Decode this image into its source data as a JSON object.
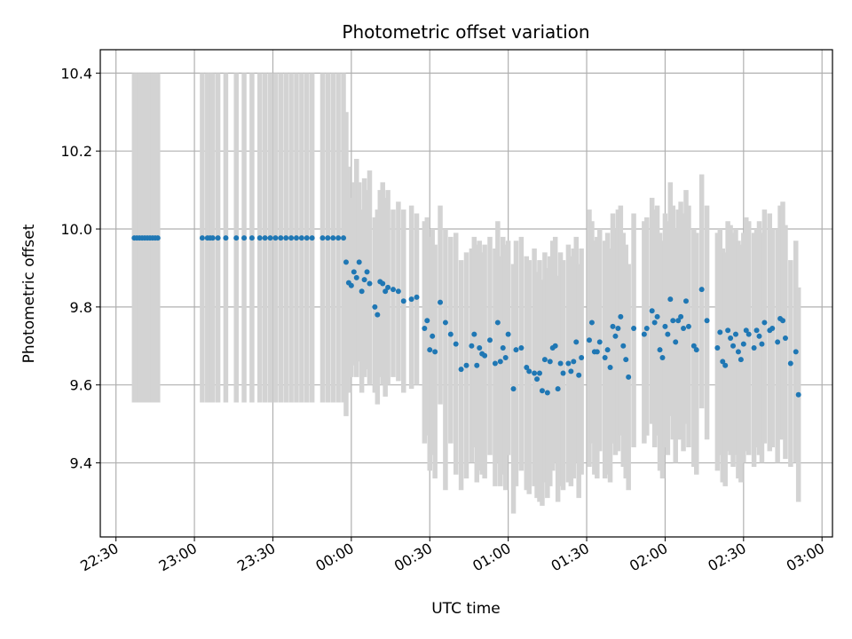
{
  "chart_data": {
    "type": "scatter",
    "title": "Photometric offset variation",
    "xlabel": "UTC time",
    "ylabel": "Photometric offset",
    "grid": true,
    "colors": {
      "points": "#1f77b4",
      "errorbars": "#d3d3d3",
      "grid": "#b0b0b0",
      "axes": "#000000"
    },
    "xlim": [
      "22:24",
      "03:04"
    ],
    "ylim": [
      9.21,
      10.46
    ],
    "x_ticks": [
      "22:30",
      "23:00",
      "23:30",
      "00:00",
      "00:30",
      "01:00",
      "01:30",
      "02:00",
      "02:30",
      "03:00"
    ],
    "y_ticks": [
      9.4,
      9.6,
      9.8,
      10.0,
      10.2,
      10.4
    ],
    "y_tick_labels": [
      "9.4",
      "9.6",
      "9.8",
      "10.0",
      "10.2",
      "10.4"
    ],
    "x_tick_rotation_deg": 30,
    "points": [
      {
        "x": "22:37",
        "y": 9.977,
        "lo": 9.555,
        "hi": 10.4
      },
      {
        "x": "22:38",
        "y": 9.977,
        "lo": 9.555,
        "hi": 10.4
      },
      {
        "x": "22:39",
        "y": 9.977,
        "lo": 9.555,
        "hi": 10.4
      },
      {
        "x": "22:40",
        "y": 9.977,
        "lo": 9.555,
        "hi": 10.4
      },
      {
        "x": "22:41",
        "y": 9.977,
        "lo": 9.555,
        "hi": 10.4
      },
      {
        "x": "22:42",
        "y": 9.977,
        "lo": 9.555,
        "hi": 10.4
      },
      {
        "x": "22:43",
        "y": 9.977,
        "lo": 9.555,
        "hi": 10.4
      },
      {
        "x": "22:44",
        "y": 9.977,
        "lo": 9.555,
        "hi": 10.4
      },
      {
        "x": "22:45",
        "y": 9.977,
        "lo": 9.555,
        "hi": 10.4
      },
      {
        "x": "22:46",
        "y": 9.977,
        "lo": 9.555,
        "hi": 10.4
      },
      {
        "x": "23:03",
        "y": 9.977,
        "lo": 9.555,
        "hi": 10.4
      },
      {
        "x": "23:05",
        "y": 9.977,
        "lo": 9.555,
        "hi": 10.4
      },
      {
        "x": "23:06",
        "y": 9.977,
        "lo": 9.555,
        "hi": 10.4
      },
      {
        "x": "23:07",
        "y": 9.977,
        "lo": 9.555,
        "hi": 10.4
      },
      {
        "x": "23:09",
        "y": 9.977,
        "lo": 9.555,
        "hi": 10.4
      },
      {
        "x": "23:12",
        "y": 9.977,
        "lo": 9.555,
        "hi": 10.4
      },
      {
        "x": "23:16",
        "y": 9.977,
        "lo": 9.555,
        "hi": 10.4
      },
      {
        "x": "23:19",
        "y": 9.977,
        "lo": 9.555,
        "hi": 10.4
      },
      {
        "x": "23:22",
        "y": 9.977,
        "lo": 9.555,
        "hi": 10.4
      },
      {
        "x": "23:25",
        "y": 9.977,
        "lo": 9.555,
        "hi": 10.4
      },
      {
        "x": "23:27",
        "y": 9.977,
        "lo": 9.555,
        "hi": 10.4
      },
      {
        "x": "23:29",
        "y": 9.977,
        "lo": 9.555,
        "hi": 10.4
      },
      {
        "x": "23:31",
        "y": 9.977,
        "lo": 9.555,
        "hi": 10.4
      },
      {
        "x": "23:33",
        "y": 9.977,
        "lo": 9.555,
        "hi": 10.4
      },
      {
        "x": "23:35",
        "y": 9.977,
        "lo": 9.555,
        "hi": 10.4
      },
      {
        "x": "23:37",
        "y": 9.977,
        "lo": 9.555,
        "hi": 10.4
      },
      {
        "x": "23:39",
        "y": 9.977,
        "lo": 9.555,
        "hi": 10.4
      },
      {
        "x": "23:41",
        "y": 9.977,
        "lo": 9.555,
        "hi": 10.4
      },
      {
        "x": "23:43",
        "y": 9.977,
        "lo": 9.555,
        "hi": 10.4
      },
      {
        "x": "23:45",
        "y": 9.977,
        "lo": 9.555,
        "hi": 10.4
      },
      {
        "x": "23:49",
        "y": 9.977,
        "lo": 9.555,
        "hi": 10.4
      },
      {
        "x": "23:51",
        "y": 9.977,
        "lo": 9.555,
        "hi": 10.4
      },
      {
        "x": "23:53",
        "y": 9.977,
        "lo": 9.555,
        "hi": 10.4
      },
      {
        "x": "23:55",
        "y": 9.977,
        "lo": 9.555,
        "hi": 10.4
      },
      {
        "x": "23:57",
        "y": 9.977,
        "lo": 9.555,
        "hi": 10.4
      },
      {
        "x": "23:58",
        "y": 9.915,
        "lo": 9.52,
        "hi": 10.3
      },
      {
        "x": "23:59",
        "y": 9.862,
        "lo": 9.58,
        "hi": 10.16
      },
      {
        "x": "00:00",
        "y": 9.855,
        "lo": 9.62,
        "hi": 10.08
      },
      {
        "x": "00:01",
        "y": 9.89,
        "lo": 9.65,
        "hi": 10.12
      },
      {
        "x": "00:02",
        "y": 9.875,
        "lo": 9.62,
        "hi": 10.18
      },
      {
        "x": "00:03",
        "y": 9.915,
        "lo": 9.66,
        "hi": 10.12
      },
      {
        "x": "00:04",
        "y": 9.84,
        "lo": 9.58,
        "hi": 10.05
      },
      {
        "x": "00:05",
        "y": 9.87,
        "lo": 9.62,
        "hi": 10.13
      },
      {
        "x": "00:06",
        "y": 9.89,
        "lo": 9.64,
        "hi": 10.1
      },
      {
        "x": "00:07",
        "y": 9.86,
        "lo": 9.6,
        "hi": 10.15
      },
      {
        "x": "00:09",
        "y": 9.8,
        "lo": 9.58,
        "hi": 10.03
      },
      {
        "x": "00:10",
        "y": 9.78,
        "lo": 9.55,
        "hi": 10.05
      },
      {
        "x": "00:11",
        "y": 9.865,
        "lo": 9.62,
        "hi": 10.1
      },
      {
        "x": "00:12",
        "y": 9.86,
        "lo": 9.6,
        "hi": 10.12
      },
      {
        "x": "00:13",
        "y": 9.84,
        "lo": 9.57,
        "hi": 10.08
      },
      {
        "x": "00:14",
        "y": 9.85,
        "lo": 9.6,
        "hi": 10.1
      },
      {
        "x": "00:16",
        "y": 9.845,
        "lo": 9.62,
        "hi": 10.05
      },
      {
        "x": "00:18",
        "y": 9.84,
        "lo": 9.61,
        "hi": 10.07
      },
      {
        "x": "00:20",
        "y": 9.815,
        "lo": 9.58,
        "hi": 10.05
      },
      {
        "x": "00:23",
        "y": 9.82,
        "lo": 9.59,
        "hi": 10.06
      },
      {
        "x": "00:25",
        "y": 9.825,
        "lo": 9.6,
        "hi": 10.04
      },
      {
        "x": "00:28",
        "y": 9.745,
        "lo": 9.45,
        "hi": 10.02
      },
      {
        "x": "00:29",
        "y": 9.765,
        "lo": 9.47,
        "hi": 10.03
      },
      {
        "x": "00:30",
        "y": 9.69,
        "lo": 9.38,
        "hi": 9.98
      },
      {
        "x": "00:31",
        "y": 9.725,
        "lo": 9.42,
        "hi": 10.0
      },
      {
        "x": "00:32",
        "y": 9.685,
        "lo": 9.36,
        "hi": 9.96
      },
      {
        "x": "00:34",
        "y": 9.812,
        "lo": 9.55,
        "hi": 10.06
      },
      {
        "x": "00:36",
        "y": 9.76,
        "lo": 9.33,
        "hi": 10.0
      },
      {
        "x": "00:38",
        "y": 9.73,
        "lo": 9.45,
        "hi": 9.98
      },
      {
        "x": "00:40",
        "y": 9.705,
        "lo": 9.37,
        "hi": 9.99
      },
      {
        "x": "00:42",
        "y": 9.64,
        "lo": 9.33,
        "hi": 9.92
      },
      {
        "x": "00:44",
        "y": 9.65,
        "lo": 9.36,
        "hi": 9.94
      },
      {
        "x": "00:46",
        "y": 9.7,
        "lo": 9.4,
        "hi": 9.95
      },
      {
        "x": "00:47",
        "y": 9.73,
        "lo": 9.44,
        "hi": 9.98
      },
      {
        "x": "00:48",
        "y": 9.65,
        "lo": 9.35,
        "hi": 9.96
      },
      {
        "x": "00:49",
        "y": 9.695,
        "lo": 9.38,
        "hi": 9.97
      },
      {
        "x": "00:50",
        "y": 9.68,
        "lo": 9.37,
        "hi": 9.94
      },
      {
        "x": "00:51",
        "y": 9.675,
        "lo": 9.36,
        "hi": 9.96
      },
      {
        "x": "00:53",
        "y": 9.715,
        "lo": 9.42,
        "hi": 9.98
      },
      {
        "x": "00:55",
        "y": 9.655,
        "lo": 9.34,
        "hi": 9.95
      },
      {
        "x": "00:56",
        "y": 9.76,
        "lo": 9.4,
        "hi": 10.02
      },
      {
        "x": "00:57",
        "y": 9.66,
        "lo": 9.34,
        "hi": 9.93
      },
      {
        "x": "00:58",
        "y": 9.695,
        "lo": 9.37,
        "hi": 9.98
      },
      {
        "x": "00:59",
        "y": 9.67,
        "lo": 9.33,
        "hi": 9.96
      },
      {
        "x": "01:00",
        "y": 9.73,
        "lo": 9.42,
        "hi": 9.97
      },
      {
        "x": "01:02",
        "y": 9.59,
        "lo": 9.27,
        "hi": 9.91
      },
      {
        "x": "01:03",
        "y": 9.69,
        "lo": 9.34,
        "hi": 9.97
      },
      {
        "x": "01:05",
        "y": 9.695,
        "lo": 9.38,
        "hi": 9.98
      },
      {
        "x": "01:07",
        "y": 9.645,
        "lo": 9.33,
        "hi": 9.93
      },
      {
        "x": "01:08",
        "y": 9.635,
        "lo": 9.32,
        "hi": 9.92
      },
      {
        "x": "01:10",
        "y": 9.63,
        "lo": 9.34,
        "hi": 9.95
      },
      {
        "x": "01:11",
        "y": 9.615,
        "lo": 9.31,
        "hi": 9.89
      },
      {
        "x": "01:12",
        "y": 9.63,
        "lo": 9.3,
        "hi": 9.92
      },
      {
        "x": "01:13",
        "y": 9.585,
        "lo": 9.29,
        "hi": 9.87
      },
      {
        "x": "01:14",
        "y": 9.665,
        "lo": 9.35,
        "hi": 9.94
      },
      {
        "x": "01:15",
        "y": 9.58,
        "lo": 9.31,
        "hi": 9.9
      },
      {
        "x": "01:16",
        "y": 9.66,
        "lo": 9.34,
        "hi": 9.93
      },
      {
        "x": "01:17",
        "y": 9.695,
        "lo": 9.38,
        "hi": 9.97
      },
      {
        "x": "01:18",
        "y": 9.7,
        "lo": 9.4,
        "hi": 9.98
      },
      {
        "x": "01:19",
        "y": 9.59,
        "lo": 9.3,
        "hi": 9.88
      },
      {
        "x": "01:20",
        "y": 9.655,
        "lo": 9.34,
        "hi": 9.94
      },
      {
        "x": "01:21",
        "y": 9.63,
        "lo": 9.33,
        "hi": 9.92
      },
      {
        "x": "01:23",
        "y": 9.655,
        "lo": 9.35,
        "hi": 9.96
      },
      {
        "x": "01:24",
        "y": 9.635,
        "lo": 9.34,
        "hi": 9.93
      },
      {
        "x": "01:25",
        "y": 9.66,
        "lo": 9.36,
        "hi": 9.95
      },
      {
        "x": "01:26",
        "y": 9.71,
        "lo": 9.4,
        "hi": 9.98
      },
      {
        "x": "01:27",
        "y": 9.625,
        "lo": 9.31,
        "hi": 9.91
      },
      {
        "x": "01:28",
        "y": 9.67,
        "lo": 9.37,
        "hi": 9.95
      },
      {
        "x": "01:31",
        "y": 9.715,
        "lo": 9.39,
        "hi": 10.05
      },
      {
        "x": "01:32",
        "y": 9.76,
        "lo": 9.45,
        "hi": 10.02
      },
      {
        "x": "01:33",
        "y": 9.685,
        "lo": 9.37,
        "hi": 9.97
      },
      {
        "x": "01:34",
        "y": 9.685,
        "lo": 9.36,
        "hi": 9.98
      },
      {
        "x": "01:35",
        "y": 9.71,
        "lo": 9.43,
        "hi": 10.0
      },
      {
        "x": "01:37",
        "y": 9.67,
        "lo": 9.36,
        "hi": 9.97
      },
      {
        "x": "01:38",
        "y": 9.69,
        "lo": 9.37,
        "hi": 9.99
      },
      {
        "x": "01:39",
        "y": 9.645,
        "lo": 9.35,
        "hi": 9.95
      },
      {
        "x": "01:40",
        "y": 9.75,
        "lo": 9.45,
        "hi": 10.04
      },
      {
        "x": "01:41",
        "y": 9.725,
        "lo": 9.42,
        "hi": 10.0
      },
      {
        "x": "01:42",
        "y": 9.745,
        "lo": 9.43,
        "hi": 10.05
      },
      {
        "x": "01:43",
        "y": 9.775,
        "lo": 9.47,
        "hi": 10.06
      },
      {
        "x": "01:44",
        "y": 9.7,
        "lo": 9.39,
        "hi": 9.99
      },
      {
        "x": "01:45",
        "y": 9.665,
        "lo": 9.36,
        "hi": 9.96
      },
      {
        "x": "01:46",
        "y": 9.62,
        "lo": 9.33,
        "hi": 9.91
      },
      {
        "x": "01:48",
        "y": 9.745,
        "lo": 9.44,
        "hi": 10.04
      },
      {
        "x": "01:52",
        "y": 9.73,
        "lo": 9.45,
        "hi": 10.02
      },
      {
        "x": "01:53",
        "y": 9.745,
        "lo": 9.47,
        "hi": 10.03
      },
      {
        "x": "01:55",
        "y": 9.79,
        "lo": 9.5,
        "hi": 10.08
      },
      {
        "x": "01:56",
        "y": 9.76,
        "lo": 9.44,
        "hi": 10.05
      },
      {
        "x": "01:57",
        "y": 9.775,
        "lo": 9.47,
        "hi": 10.06
      },
      {
        "x": "01:58",
        "y": 9.69,
        "lo": 9.38,
        "hi": 9.99
      },
      {
        "x": "01:59",
        "y": 9.67,
        "lo": 9.36,
        "hi": 9.97
      },
      {
        "x": "02:00",
        "y": 9.75,
        "lo": 9.44,
        "hi": 10.04
      },
      {
        "x": "02:01",
        "y": 9.73,
        "lo": 9.42,
        "hi": 10.02
      },
      {
        "x": "02:02",
        "y": 9.82,
        "lo": 9.52,
        "hi": 10.12
      },
      {
        "x": "02:03",
        "y": 9.765,
        "lo": 9.46,
        "hi": 10.06
      },
      {
        "x": "02:04",
        "y": 9.71,
        "lo": 9.4,
        "hi": 10.0
      },
      {
        "x": "02:05",
        "y": 9.765,
        "lo": 9.46,
        "hi": 10.05
      },
      {
        "x": "02:06",
        "y": 9.775,
        "lo": 9.46,
        "hi": 10.07
      },
      {
        "x": "02:07",
        "y": 9.745,
        "lo": 9.43,
        "hi": 10.04
      },
      {
        "x": "02:08",
        "y": 9.815,
        "lo": 9.5,
        "hi": 10.1
      },
      {
        "x": "02:09",
        "y": 9.75,
        "lo": 9.44,
        "hi": 10.06
      },
      {
        "x": "02:11",
        "y": 9.7,
        "lo": 9.39,
        "hi": 10.0
      },
      {
        "x": "02:12",
        "y": 9.69,
        "lo": 9.37,
        "hi": 9.99
      },
      {
        "x": "02:14",
        "y": 9.845,
        "lo": 9.54,
        "hi": 10.14
      },
      {
        "x": "02:16",
        "y": 9.765,
        "lo": 9.46,
        "hi": 10.06
      },
      {
        "x": "02:20",
        "y": 9.695,
        "lo": 9.38,
        "hi": 9.99
      },
      {
        "x": "02:21",
        "y": 9.735,
        "lo": 9.42,
        "hi": 10.0
      },
      {
        "x": "02:22",
        "y": 9.66,
        "lo": 9.35,
        "hi": 9.95
      },
      {
        "x": "02:23",
        "y": 9.65,
        "lo": 9.34,
        "hi": 9.94
      },
      {
        "x": "02:24",
        "y": 9.74,
        "lo": 9.43,
        "hi": 10.02
      },
      {
        "x": "02:25",
        "y": 9.72,
        "lo": 9.42,
        "hi": 10.01
      },
      {
        "x": "02:26",
        "y": 9.7,
        "lo": 9.39,
        "hi": 9.99
      },
      {
        "x": "02:27",
        "y": 9.73,
        "lo": 9.42,
        "hi": 10.0
      },
      {
        "x": "02:28",
        "y": 9.685,
        "lo": 9.36,
        "hi": 9.97
      },
      {
        "x": "02:29",
        "y": 9.665,
        "lo": 9.35,
        "hi": 9.96
      },
      {
        "x": "02:30",
        "y": 9.705,
        "lo": 9.4,
        "hi": 9.99
      },
      {
        "x": "02:31",
        "y": 9.74,
        "lo": 9.43,
        "hi": 10.03
      },
      {
        "x": "02:32",
        "y": 9.73,
        "lo": 9.42,
        "hi": 10.02
      },
      {
        "x": "02:34",
        "y": 9.695,
        "lo": 9.39,
        "hi": 9.99
      },
      {
        "x": "02:35",
        "y": 9.74,
        "lo": 9.44,
        "hi": 10.0
      },
      {
        "x": "02:36",
        "y": 9.725,
        "lo": 9.42,
        "hi": 10.02
      },
      {
        "x": "02:37",
        "y": 9.705,
        "lo": 9.4,
        "hi": 9.99
      },
      {
        "x": "02:38",
        "y": 9.76,
        "lo": 9.45,
        "hi": 10.05
      },
      {
        "x": "02:40",
        "y": 9.74,
        "lo": 9.43,
        "hi": 10.04
      },
      {
        "x": "02:41",
        "y": 9.745,
        "lo": 9.44,
        "hi": 10.0
      },
      {
        "x": "02:43",
        "y": 9.71,
        "lo": 9.4,
        "hi": 10.0
      },
      {
        "x": "02:44",
        "y": 9.77,
        "lo": 9.46,
        "hi": 10.06
      },
      {
        "x": "02:45",
        "y": 9.765,
        "lo": 9.46,
        "hi": 10.07
      },
      {
        "x": "02:46",
        "y": 9.72,
        "lo": 9.41,
        "hi": 10.01
      },
      {
        "x": "02:48",
        "y": 9.655,
        "lo": 9.39,
        "hi": 9.92
      },
      {
        "x": "02:50",
        "y": 9.685,
        "lo": 9.4,
        "hi": 9.97
      },
      {
        "x": "02:51",
        "y": 9.575,
        "lo": 9.3,
        "hi": 9.85
      }
    ]
  }
}
